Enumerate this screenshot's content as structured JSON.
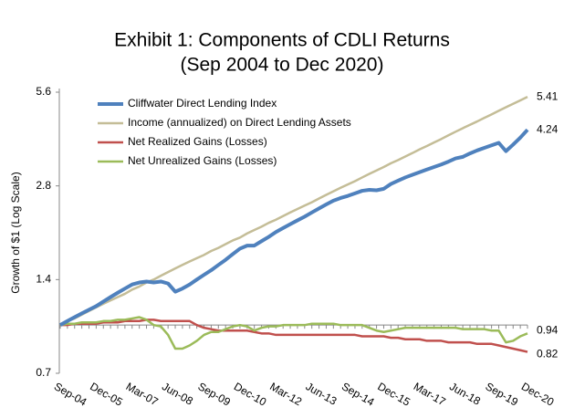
{
  "chart_data": {
    "type": "line",
    "title": "Exhibit 1: Components of CDLI Returns",
    "subtitle": "(Sep 2004 to Dec 2020)",
    "y_label": "Growth of $1 (Log Scale)",
    "log_scale": true,
    "legend": "top-left",
    "ylim": [
      0.7,
      5.6
    ],
    "yticks": [
      0.7,
      1.4,
      2.8,
      5.6
    ],
    "categories": [
      "Sep-04",
      null,
      null,
      null,
      null,
      "Dec-05",
      null,
      null,
      null,
      null,
      "Mar-07",
      null,
      null,
      null,
      null,
      "Jun-08",
      null,
      null,
      null,
      null,
      "Sep-09",
      null,
      null,
      null,
      null,
      "Dec-10",
      null,
      null,
      null,
      null,
      "Mar-12",
      null,
      null,
      null,
      null,
      "Jun-13",
      null,
      null,
      null,
      null,
      "Sep-14",
      null,
      null,
      null,
      null,
      "Dec-15",
      null,
      null,
      null,
      null,
      "Mar-17",
      null,
      null,
      null,
      null,
      "Jun-18",
      null,
      null,
      null,
      null,
      "Sep-19",
      null,
      null,
      null,
      null,
      "Dec-20"
    ],
    "series": [
      {
        "name": "Cliffwater Direct Lending Index",
        "color": "#4f81bd",
        "values": [
          1.0,
          1.03,
          1.06,
          1.09,
          1.12,
          1.15,
          1.19,
          1.23,
          1.27,
          1.31,
          1.35,
          1.37,
          1.38,
          1.37,
          1.38,
          1.36,
          1.28,
          1.31,
          1.35,
          1.4,
          1.45,
          1.5,
          1.56,
          1.62,
          1.69,
          1.76,
          1.8,
          1.8,
          1.86,
          1.92,
          1.99,
          2.05,
          2.11,
          2.17,
          2.23,
          2.3,
          2.37,
          2.44,
          2.51,
          2.56,
          2.6,
          2.65,
          2.7,
          2.72,
          2.71,
          2.74,
          2.84,
          2.91,
          2.98,
          3.04,
          3.1,
          3.16,
          3.22,
          3.28,
          3.35,
          3.43,
          3.47,
          3.56,
          3.64,
          3.71,
          3.78,
          3.85,
          3.62,
          3.8,
          4.0,
          4.24
        ]
      },
      {
        "name": "Income (annualized) on Direct Lending Assets",
        "color": "#c4bd97",
        "values": [
          1.0,
          1.03,
          1.05,
          1.08,
          1.11,
          1.14,
          1.17,
          1.2,
          1.23,
          1.26,
          1.3,
          1.33,
          1.37,
          1.4,
          1.44,
          1.48,
          1.52,
          1.56,
          1.6,
          1.64,
          1.68,
          1.73,
          1.77,
          1.82,
          1.87,
          1.91,
          1.97,
          2.02,
          2.07,
          2.13,
          2.18,
          2.24,
          2.3,
          2.36,
          2.42,
          2.48,
          2.55,
          2.62,
          2.69,
          2.76,
          2.83,
          2.9,
          2.98,
          3.06,
          3.14,
          3.22,
          3.31,
          3.39,
          3.48,
          3.57,
          3.67,
          3.76,
          3.86,
          3.96,
          4.07,
          4.18,
          4.29,
          4.4,
          4.51,
          4.63,
          4.75,
          4.88,
          5.01,
          5.14,
          5.27,
          5.41
        ]
      },
      {
        "name": "Net Realized Gains (Losses)",
        "color": "#c0504d",
        "values": [
          1.0,
          1.0,
          1.01,
          1.01,
          1.01,
          1.01,
          1.02,
          1.02,
          1.02,
          1.03,
          1.03,
          1.03,
          1.04,
          1.04,
          1.03,
          1.03,
          1.03,
          1.03,
          1.03,
          1.0,
          0.98,
          0.97,
          0.96,
          0.96,
          0.96,
          0.96,
          0.96,
          0.95,
          0.94,
          0.94,
          0.93,
          0.93,
          0.93,
          0.93,
          0.93,
          0.93,
          0.93,
          0.93,
          0.93,
          0.93,
          0.93,
          0.93,
          0.92,
          0.92,
          0.92,
          0.92,
          0.91,
          0.91,
          0.9,
          0.9,
          0.9,
          0.89,
          0.89,
          0.89,
          0.88,
          0.88,
          0.88,
          0.88,
          0.87,
          0.87,
          0.87,
          0.86,
          0.85,
          0.84,
          0.83,
          0.82
        ]
      },
      {
        "name": "Net Unrealized Gains (Losses)",
        "color": "#9bbb59",
        "values": [
          1.0,
          1.01,
          1.01,
          1.02,
          1.02,
          1.02,
          1.03,
          1.03,
          1.04,
          1.04,
          1.05,
          1.06,
          1.04,
          1.0,
          0.99,
          0.93,
          0.84,
          0.84,
          0.86,
          0.89,
          0.93,
          0.95,
          0.95,
          0.97,
          0.99,
          1.0,
          0.99,
          0.96,
          0.98,
          0.99,
          0.99,
          1.0,
          1.0,
          1.0,
          1.0,
          1.01,
          1.01,
          1.01,
          1.01,
          1.0,
          1.0,
          1.0,
          1.0,
          0.98,
          0.96,
          0.95,
          0.96,
          0.97,
          0.98,
          0.98,
          0.98,
          0.98,
          0.98,
          0.98,
          0.98,
          0.98,
          0.97,
          0.97,
          0.97,
          0.97,
          0.96,
          0.96,
          0.88,
          0.89,
          0.92,
          0.94
        ]
      }
    ]
  }
}
